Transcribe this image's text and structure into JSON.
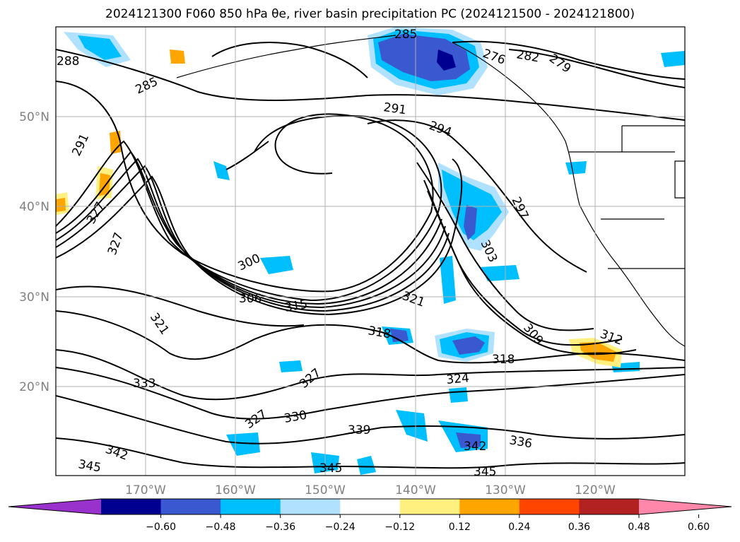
{
  "title": "2024121300 F060 850 hPa θe, river basin precipitation PC (2024121500 - 2024121800)",
  "map": {
    "lon_labels": [
      "170°W",
      "160°W",
      "150°W",
      "140°W",
      "130°W",
      "120°W"
    ],
    "lat_labels": [
      "50°N",
      "40°N",
      "30°N",
      "20°N"
    ],
    "contour_labels": [
      "288",
      "285",
      "291",
      "327",
      "327",
      "321",
      "333",
      "342",
      "345",
      "300",
      "306",
      "315",
      "318",
      "327",
      "327",
      "330",
      "339",
      "345",
      "285",
      "276",
      "282",
      "279",
      "291",
      "294",
      "297",
      "303",
      "321",
      "309",
      "312",
      "318",
      "324",
      "336",
      "342",
      "345"
    ],
    "colors": {
      "contour": "#000000",
      "grid": "#b0b0b0",
      "neg_strong": "#000090",
      "neg_mid": "#3a58d0",
      "neg_light": "#00bfff",
      "neg_pale": "#b0e2ff",
      "pos_pale": "#fff080",
      "pos_light": "#ffa500",
      "pos_mid": "#ff4500",
      "pos_strong": "#b22222"
    }
  },
  "colorbar": {
    "ticks": [
      "−0.60",
      "−0.48",
      "−0.36",
      "−0.24",
      "−0.12",
      "0.12",
      "0.24",
      "0.36",
      "0.48",
      "0.60"
    ],
    "colors": [
      "#9932cc",
      "#000090",
      "#3a58d0",
      "#00bfff",
      "#b0e2ff",
      "#ffffff",
      "#fff080",
      "#ffa500",
      "#ff4500",
      "#b22222",
      "#ff88aa"
    ]
  }
}
